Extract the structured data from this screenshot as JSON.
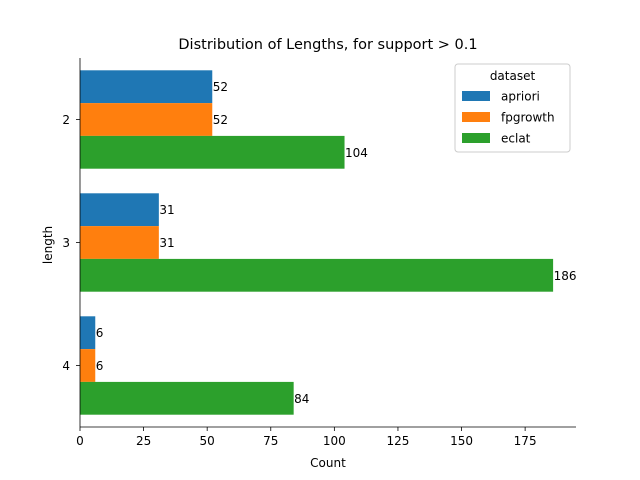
{
  "chart_data": {
    "type": "bar",
    "orientation": "horizontal",
    "title": "Distribution of Lengths, for support > 0.1",
    "xlabel": "Count",
    "ylabel": "length",
    "categories": [
      "2",
      "3",
      "4"
    ],
    "xlim": [
      0,
      195
    ],
    "xticks": [
      0,
      25,
      50,
      75,
      100,
      125,
      150,
      175
    ],
    "grid": false,
    "legend": {
      "title": "dataset",
      "placement": "top-right"
    },
    "series": [
      {
        "name": "apriori",
        "color": "#1f77b4",
        "values": [
          52,
          31,
          6
        ]
      },
      {
        "name": "fpgrowth",
        "color": "#ff7f0e",
        "values": [
          52,
          31,
          6
        ]
      },
      {
        "name": "eclat",
        "color": "#2ca02c",
        "values": [
          104,
          186,
          84
        ]
      }
    ]
  }
}
